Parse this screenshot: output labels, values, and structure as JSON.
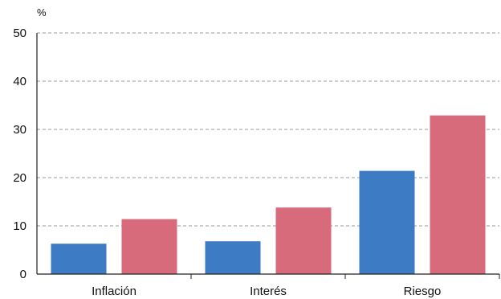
{
  "chart_data": {
    "type": "bar",
    "title": "",
    "xlabel": "",
    "ylabel": "%",
    "ylim": [
      0,
      50
    ],
    "yticks": [
      0,
      10,
      20,
      30,
      40,
      50
    ],
    "grid": true,
    "legend": "none",
    "categories": [
      "Inflación",
      "Interés",
      "Riesgo"
    ],
    "series": [
      {
        "color": "#3d7cc4",
        "values": [
          6.3,
          6.8,
          21.4
        ]
      },
      {
        "color": "#d86b7b",
        "values": [
          11.4,
          13.8,
          32.9
        ]
      }
    ]
  }
}
